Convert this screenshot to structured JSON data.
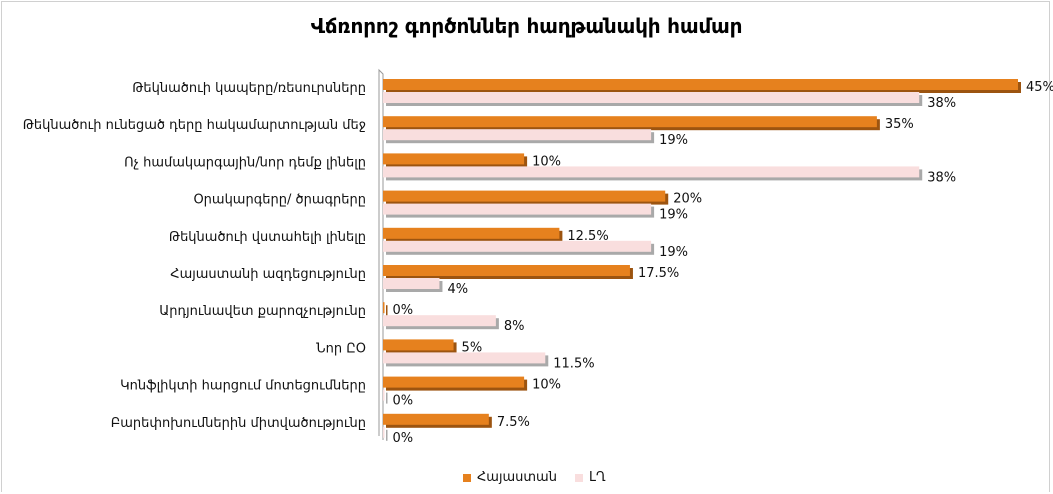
{
  "chart_data": {
    "type": "bar",
    "orientation": "horizontal",
    "title": "Վճռորոշ գործոններ հաղթանակի համար",
    "categories": [
      "Թեկնածուի կապերը/ռեսուրսները",
      "Թեկնածուի ունեցած դերը հակամարտության մեջ",
      "Ոչ համակարգային/նոր դեմք լինելը",
      "Օրակարգերը/ ծրագրերը",
      "Թեկնածուի վստահելի լինելը",
      "Հայաստանի ազդեցությունը",
      "Արդյունավետ քարոզչությունը",
      "Նոր ԸՕ",
      "Կոնֆլիկտի հարցում մոտեցումները",
      "Բարեփոխումներին միտվածությունը"
    ],
    "series": [
      {
        "name": "Հայաստան",
        "color": "#E6811E",
        "values": [
          45,
          35,
          10,
          20,
          12.5,
          17.5,
          0,
          5,
          10,
          7.5
        ],
        "labels": [
          "45%",
          "35%",
          "10%",
          "20%",
          "12.5%",
          "17.5%",
          "0%",
          "5%",
          "10%",
          "7.5%"
        ]
      },
      {
        "name": "ԼՂ",
        "color": "#F9DEDE",
        "values": [
          38,
          19,
          38,
          19,
          19,
          4,
          8,
          11.5,
          0,
          0
        ],
        "labels": [
          "38%",
          "19%",
          "38%",
          "19%",
          "19%",
          "4%",
          "8%",
          "11.5%",
          "0%",
          "0%"
        ]
      }
    ],
    "xlim": [
      0,
      45
    ],
    "grid": false,
    "legend_position": "bottom"
  }
}
